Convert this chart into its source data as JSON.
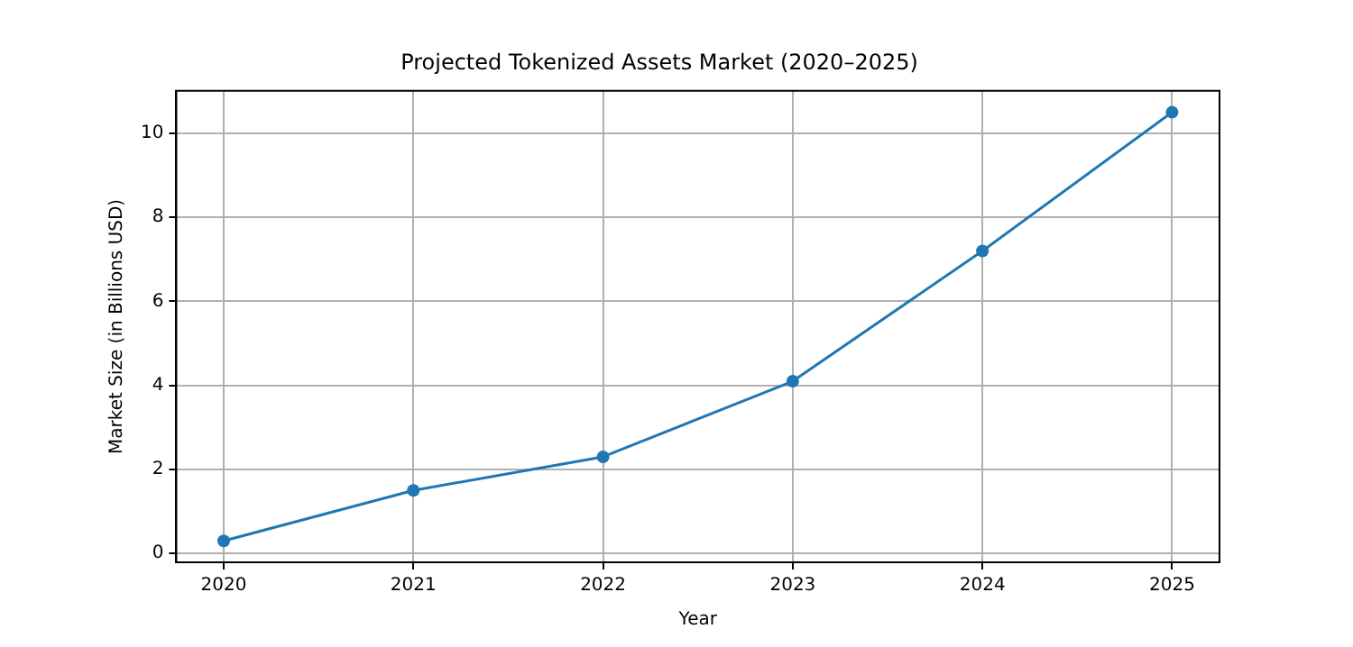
{
  "chart_data": {
    "type": "line",
    "title": "Projected Tokenized Assets Market (2020–2025)",
    "xlabel": "Year",
    "ylabel": "Market Size (in Billions USD)",
    "x": [
      2020,
      2021,
      2022,
      2023,
      2024,
      2025
    ],
    "series": [
      {
        "color": "#1f77b4",
        "values": [
          0.3,
          1.5,
          2.3,
          4.1,
          7.2,
          10.5
        ]
      }
    ],
    "xlim": [
      2019.75,
      2025.25
    ],
    "xticks": [
      2020,
      2021,
      2022,
      2023,
      2024,
      2025
    ],
    "ylim": [
      -0.21,
      11.01
    ],
    "yticks": [
      0,
      2,
      4,
      6,
      8,
      10
    ],
    "grid": true,
    "legend": false,
    "marker": "circle",
    "line_style": "solid"
  }
}
